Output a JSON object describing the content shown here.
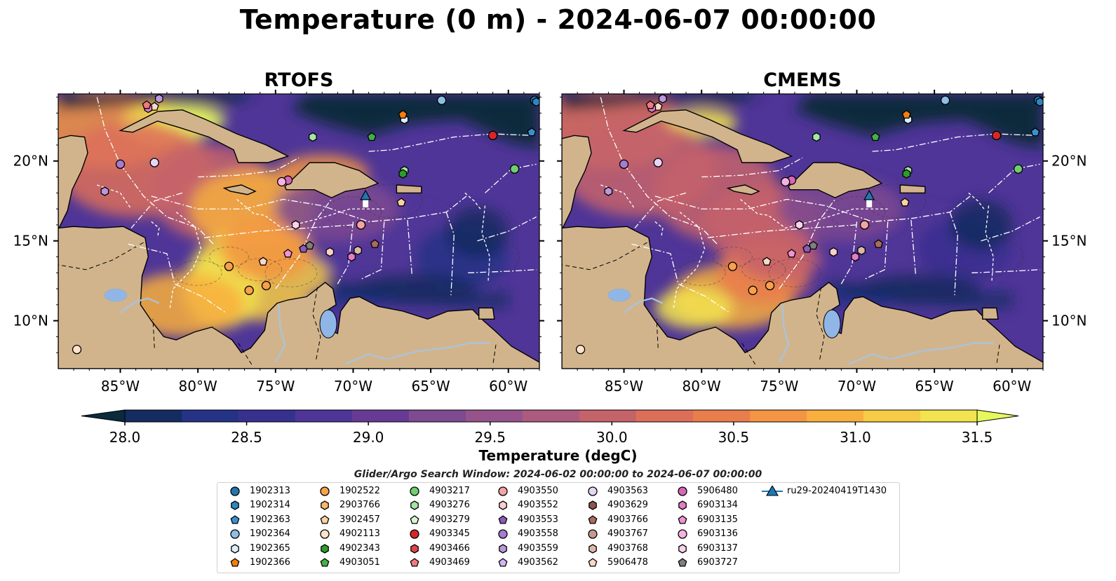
{
  "title": "Temperature (0 m) - 2024-06-07 00:00:00",
  "panels": [
    {
      "title": "RTOFS"
    },
    {
      "title": "CMEMS"
    }
  ],
  "map": {
    "lon_ticks": [
      "85°W",
      "80°W",
      "75°W",
      "70°W",
      "65°W",
      "60°W"
    ],
    "lat_ticks": [
      "20°N",
      "15°N",
      "10°N"
    ],
    "land_color": "#d2b48c",
    "river_color": "#a9c4dc",
    "lake_color": "#8fb6e6"
  },
  "colorbar": {
    "label": "Temperature (degC)",
    "ticks": [
      "28.0",
      "28.5",
      "29.0",
      "29.5",
      "30.0",
      "30.5",
      "31.0",
      "31.5"
    ],
    "colors": [
      "#0b2a3d",
      "#142c60",
      "#253286",
      "#38308f",
      "#4f3597",
      "#673b95",
      "#7e4a90",
      "#96538b",
      "#ad5a7f",
      "#c5636b",
      "#dc6f5a",
      "#ea7d4c",
      "#f39542",
      "#f8af3d",
      "#f6cb45",
      "#f2e34f",
      "#e6f95c"
    ]
  },
  "search_window": "Glider/Argo Search Window: 2024-06-02 00:00:00 to 2024-06-07 00:00:00",
  "legend": {
    "items": [
      {
        "label": "1902313",
        "color": "#1f77b4",
        "marker": "circle"
      },
      {
        "label": "1902314",
        "color": "#2e86c1",
        "marker": "hexagon"
      },
      {
        "label": "1902363",
        "color": "#3b8fd0",
        "marker": "pentagon"
      },
      {
        "label": "1902364",
        "color": "#8ebee6",
        "marker": "circle"
      },
      {
        "label": "1902365",
        "color": "#dbeefa",
        "marker": "hexagon"
      },
      {
        "label": "1902366",
        "color": "#f07f10",
        "marker": "pentagon"
      },
      {
        "label": "1902522",
        "color": "#f8a04a",
        "marker": "circle"
      },
      {
        "label": "2903766",
        "color": "#fbb56e",
        "marker": "hexagon"
      },
      {
        "label": "3902457",
        "color": "#fcd2a5",
        "marker": "pentagon"
      },
      {
        "label": "4902113",
        "color": "#fde3cc",
        "marker": "circle"
      },
      {
        "label": "4902343",
        "color": "#2a9d2a",
        "marker": "hexagon"
      },
      {
        "label": "4903051",
        "color": "#45b045",
        "marker": "pentagon"
      },
      {
        "label": "4903217",
        "color": "#6fcf6f",
        "marker": "circle"
      },
      {
        "label": "4903276",
        "color": "#a4e6a4",
        "marker": "hexagon"
      },
      {
        "label": "4903279",
        "color": "#d8f7d0",
        "marker": "pentagon"
      },
      {
        "label": "4903345",
        "color": "#d62728",
        "marker": "circle"
      },
      {
        "label": "4903466",
        "color": "#e0444a",
        "marker": "hexagon"
      },
      {
        "label": "4903469",
        "color": "#f07a80",
        "marker": "pentagon"
      },
      {
        "label": "4903550",
        "color": "#f5a3a3",
        "marker": "circle"
      },
      {
        "label": "4903552",
        "color": "#fbd0cc",
        "marker": "hexagon"
      },
      {
        "label": "4903553",
        "color": "#8a5bb8",
        "marker": "pentagon"
      },
      {
        "label": "4903558",
        "color": "#a67bd0",
        "marker": "circle"
      },
      {
        "label": "4903559",
        "color": "#bb98dd",
        "marker": "hexagon"
      },
      {
        "label": "4903562",
        "color": "#d2b8ee",
        "marker": "pentagon"
      },
      {
        "label": "4903563",
        "color": "#e6d6f6",
        "marker": "circle"
      },
      {
        "label": "4903629",
        "color": "#8c564b",
        "marker": "hexagon"
      },
      {
        "label": "4903766",
        "color": "#a86d5f",
        "marker": "pentagon"
      },
      {
        "label": "4903767",
        "color": "#c49a8c",
        "marker": "circle"
      },
      {
        "label": "4903768",
        "color": "#ddb8a8",
        "marker": "hexagon"
      },
      {
        "label": "5906478",
        "color": "#f7d9c8",
        "marker": "pentagon"
      },
      {
        "label": "5906480",
        "color": "#d866b8",
        "marker": "circle"
      },
      {
        "label": "6903134",
        "color": "#e57cc6",
        "marker": "hexagon"
      },
      {
        "label": "6903135",
        "color": "#ef93d2",
        "marker": "pentagon"
      },
      {
        "label": "6903136",
        "color": "#f5b3e0",
        "marker": "circle"
      },
      {
        "label": "6903137",
        "color": "#fbd2ee",
        "marker": "hexagon"
      },
      {
        "label": "6903727",
        "color": "#7f7f7f",
        "marker": "pentagon"
      },
      {
        "label": "ru29-20240419T1430",
        "color": "#1f77b4",
        "marker": "triangle-line"
      }
    ]
  }
}
